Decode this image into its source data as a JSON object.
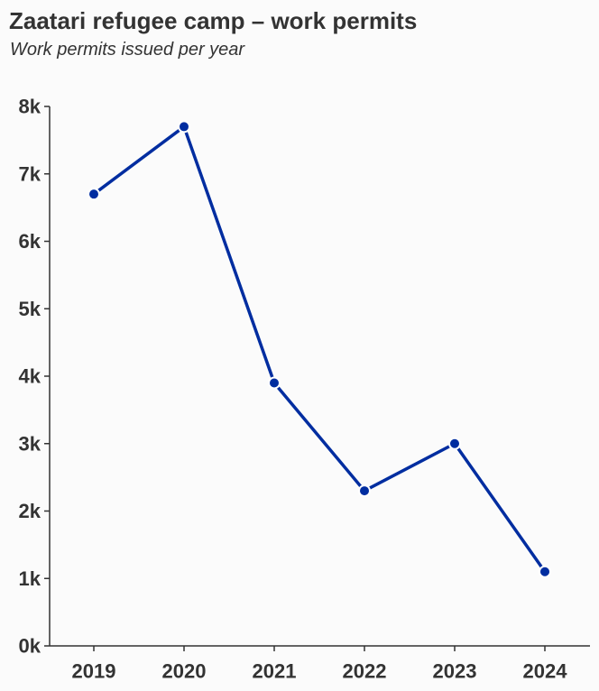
{
  "chart_data": {
    "type": "line",
    "title": "Zaatari refugee camp – work permits",
    "subtitle": "Work permits issued per year",
    "xlabel": "",
    "ylabel": "",
    "x": [
      "2019",
      "2020",
      "2021",
      "2022",
      "2023",
      "2024"
    ],
    "series": [
      {
        "values": [
          6700,
          7700,
          3900,
          2300,
          3000,
          1100
        ]
      }
    ],
    "ylim": [
      0,
      8000
    ],
    "yticks": [
      "0k",
      "1k",
      "2k",
      "3k",
      "4k",
      "5k",
      "6k",
      "7k",
      "8k"
    ],
    "grid": false,
    "legend": "none",
    "colors": {
      "line": "#002da0",
      "text": "#333333",
      "axis": "#333333",
      "background": "#fbfbfb"
    }
  }
}
